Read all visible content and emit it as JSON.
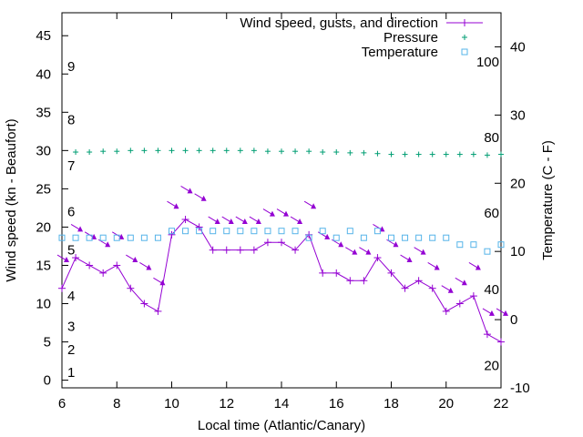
{
  "chart_data": {
    "type": "line",
    "title": "",
    "xlabel": "Local time (Atlantic/Canary)",
    "ylabel": "Wind speed (kn - Beaufort)",
    "y2label": "Temperature (C - F)",
    "xlim": [
      6,
      22
    ],
    "ylim": [
      -1,
      48
    ],
    "y2lim": [
      -10,
      45
    ],
    "x_ticks": [
      6,
      8,
      10,
      12,
      14,
      16,
      18,
      20,
      22
    ],
    "x_tick_labels": [
      "6",
      "8",
      "10",
      "12",
      "14",
      "16",
      "18",
      "20",
      "22"
    ],
    "y_ticks": [
      0,
      5,
      10,
      15,
      20,
      25,
      30,
      35,
      40,
      45
    ],
    "y_tick_labels": [
      "0",
      "5",
      "10",
      "15",
      "20",
      "25",
      "30",
      "35",
      "40",
      "45"
    ],
    "y2_ticks": [
      -10,
      0,
      10,
      20,
      30,
      40
    ],
    "y2_tick_labels": [
      "-10",
      "0",
      "10",
      "20",
      "30",
      "40"
    ],
    "beaufort_labels": [
      {
        "label": "1",
        "y": 1
      },
      {
        "label": "2",
        "y": 4
      },
      {
        "label": "3",
        "y": 7
      },
      {
        "label": "4",
        "y": 11
      },
      {
        "label": "5",
        "y": 17
      },
      {
        "label": "6",
        "y": 22
      },
      {
        "label": "7",
        "y": 28
      },
      {
        "label": "8",
        "y": 34
      },
      {
        "label": "9",
        "y": 41
      }
    ],
    "fahrenheit_labels": [
      {
        "label": "20",
        "t": -6.7
      },
      {
        "label": "40",
        "t": 4.4
      },
      {
        "label": "60",
        "t": 15.6
      },
      {
        "label": "80",
        "t": 26.7
      },
      {
        "label": "100",
        "t": 37.8
      }
    ],
    "grid": false,
    "legend_position": "top-right",
    "legend": [
      "Wind speed, gusts, and direction",
      "Pressure",
      "Temperature"
    ],
    "colors": {
      "wind": "#9400d3",
      "pressure": "#009e73",
      "temperature": "#56b4e9"
    },
    "series": [
      {
        "name": "Wind speed, gusts, and direction",
        "x": [
          6,
          6.5,
          7,
          7.5,
          8,
          8.5,
          9,
          9.5,
          10,
          10.5,
          11,
          11.5,
          12,
          12.5,
          13,
          13.5,
          14,
          14.5,
          15,
          15.5,
          16,
          16.5,
          17,
          17.5,
          18,
          18.5,
          19,
          19.5,
          20,
          20.5,
          21,
          21.5,
          22
        ],
        "values": [
          12,
          16,
          15,
          14,
          15,
          12,
          10,
          9,
          19,
          21,
          20,
          17,
          17,
          17,
          17,
          18,
          18,
          17,
          19,
          14,
          14,
          13,
          13,
          16,
          14,
          12,
          13,
          12,
          9,
          10,
          11,
          6,
          5
        ],
        "gusts": [
          16,
          20,
          19,
          18,
          19,
          16,
          15,
          13,
          23,
          25,
          24,
          21,
          21,
          21,
          21,
          22,
          22,
          21,
          23,
          19,
          18,
          17,
          17,
          20,
          18,
          16,
          17,
          15,
          12,
          13,
          15,
          9,
          9
        ]
      },
      {
        "name": "Pressure",
        "x": [
          6.5,
          7,
          7.5,
          8,
          8.5,
          9,
          9.5,
          10,
          10.5,
          11,
          11.5,
          12,
          12.5,
          13,
          13.5,
          14,
          14.5,
          15,
          15.5,
          16,
          16.5,
          17,
          17.5,
          18,
          18.5,
          19,
          19.5,
          20,
          20.5,
          21,
          21.5,
          22
        ],
        "values": [
          29.8,
          29.8,
          29.9,
          29.9,
          30.0,
          30.0,
          30.0,
          30.0,
          30.0,
          30.0,
          30.0,
          30.0,
          30.0,
          30.0,
          29.9,
          29.9,
          29.9,
          29.9,
          29.8,
          29.8,
          29.7,
          29.7,
          29.6,
          29.5,
          29.5,
          29.5,
          29.5,
          29.5,
          29.5,
          29.5,
          29.4,
          29.5
        ]
      },
      {
        "name": "Temperature",
        "x": [
          6,
          6.5,
          7,
          7.5,
          8,
          8.5,
          9,
          9.5,
          10,
          10.5,
          11,
          11.5,
          12,
          12.5,
          13,
          13.5,
          14,
          14.5,
          15,
          15.5,
          16,
          16.5,
          17,
          17.5,
          18,
          18.5,
          19,
          19.5,
          20,
          20.5,
          21,
          21.5,
          22
        ],
        "values": [
          12,
          12,
          12,
          12,
          12,
          12,
          12,
          12,
          13,
          13,
          13,
          13,
          13,
          13,
          13,
          13,
          13,
          13,
          12,
          13,
          12,
          13,
          12,
          13,
          12,
          12,
          12,
          12,
          12,
          11,
          11,
          10,
          11
        ]
      }
    ]
  }
}
